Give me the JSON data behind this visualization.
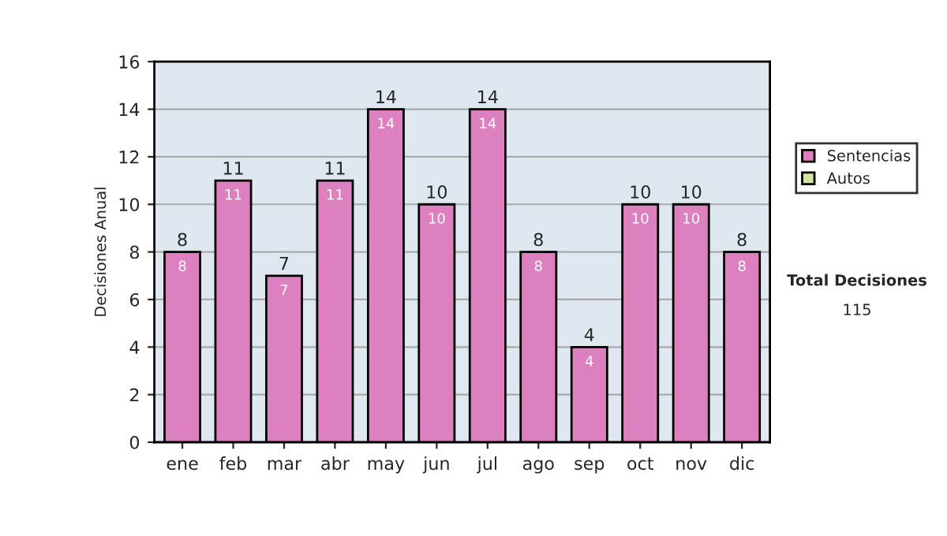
{
  "chart_data": {
    "type": "bar",
    "ylabel": "Decisiones Anual",
    "categories": [
      "ene",
      "feb",
      "mar",
      "abr",
      "may",
      "jun",
      "jul",
      "ago",
      "sep",
      "oct",
      "nov",
      "dic"
    ],
    "stacked": true,
    "series": [
      {
        "name": "Sentencias",
        "color": "#dd80c0",
        "values": [
          8,
          11,
          7,
          11,
          14,
          10,
          14,
          8,
          4,
          10,
          10,
          8
        ],
        "value_labels": [
          "8",
          "11",
          "7",
          "11",
          "14",
          "10",
          "14",
          "8",
          "4",
          "10",
          "10",
          "8"
        ]
      },
      {
        "name": "Autos",
        "color": "#d0e8a0",
        "values": [
          0,
          0,
          0,
          0,
          0,
          0,
          0,
          0,
          0,
          0,
          0,
          0
        ]
      }
    ],
    "totals": [
      "8",
      "11",
      "7",
      "11",
      "14",
      "10",
      "14",
      "8",
      "4",
      "10",
      "10",
      "8"
    ],
    "ylim": [
      0,
      16
    ],
    "yticks": [
      0,
      2,
      4,
      6,
      8,
      10,
      12,
      14,
      16
    ],
    "grid": "y",
    "legend": "right",
    "annotations": [
      "Total Decisiones",
      "115"
    ]
  }
}
